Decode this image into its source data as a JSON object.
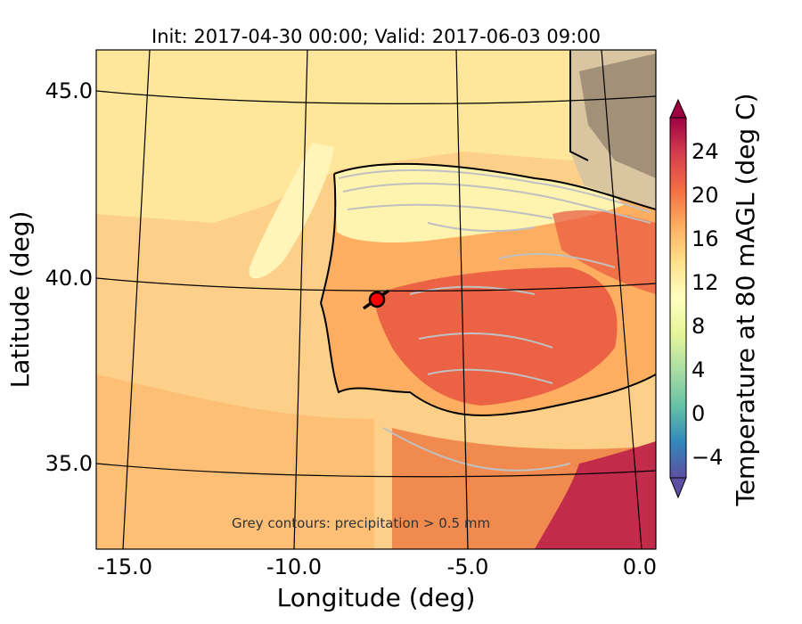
{
  "title": "Init: 2017-04-30 00:00; Valid: 2017-06-03 09:00",
  "xlabel": "Longitude (deg)",
  "ylabel": "Latitude (deg)",
  "annotation": "Grey contours: precipitation > 0.5 mm",
  "colorbar": {
    "label": "Temperature at 80 mAGL (deg C)",
    "ticks": [
      "24",
      "20",
      "16",
      "12",
      "8",
      "4",
      "0",
      "−4"
    ],
    "colormap": [
      "#5e4fa2",
      "#3288bd",
      "#66c2a5",
      "#abdda4",
      "#e6f598",
      "#ffffbf",
      "#fee08b",
      "#fdae61",
      "#f46d43",
      "#d53e4f",
      "#9e0142"
    ]
  },
  "map": {
    "x_ticks": [
      "-15.0",
      "-10.0",
      "-5.0",
      "0.0"
    ],
    "y_ticks": [
      "45.0",
      "40.0",
      "35.0"
    ],
    "marker_label": "site-marker"
  }
}
